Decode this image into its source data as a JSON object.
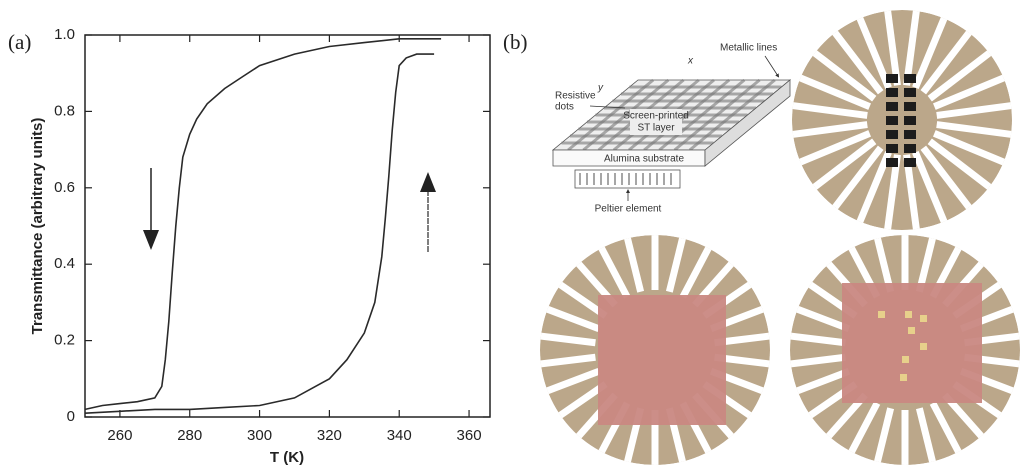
{
  "chart_data": {
    "type": "line",
    "xlabel": "T (K)",
    "ylabel": "Transmittance (arbitrary units)",
    "xlim": [
      250,
      366
    ],
    "ylim": [
      0,
      1
    ],
    "xticks": [
      260,
      280,
      300,
      320,
      340,
      360
    ],
    "yticks": [
      0,
      0.2,
      0.4,
      0.6,
      0.8,
      {
        "value": 1,
        "label": "1.0"
      }
    ],
    "series": [
      {
        "color": "#2a2a2a",
        "x": [
          352,
          345,
          340,
          330,
          320,
          310,
          300,
          295,
          290,
          285,
          282,
          280,
          278,
          277,
          276,
          275,
          274,
          273,
          272,
          270,
          265,
          260,
          255,
          250
        ],
        "values": [
          0.99,
          0.99,
          0.99,
          0.98,
          0.97,
          0.95,
          0.92,
          0.89,
          0.86,
          0.82,
          0.78,
          0.74,
          0.68,
          0.6,
          0.5,
          0.38,
          0.25,
          0.15,
          0.08,
          0.05,
          0.04,
          0.035,
          0.03,
          0.02
        ]
      },
      {
        "color": "#2a2a2a",
        "x": [
          250,
          260,
          270,
          280,
          290,
          300,
          310,
          320,
          325,
          330,
          333,
          335,
          336,
          337,
          338,
          339,
          340,
          342,
          345,
          350
        ],
        "values": [
          0.01,
          0.015,
          0.02,
          0.02,
          0.025,
          0.03,
          0.05,
          0.1,
          0.15,
          0.22,
          0.3,
          0.42,
          0.52,
          0.63,
          0.75,
          0.85,
          0.92,
          0.94,
          0.95,
          0.95
        ]
      }
    ]
  },
  "panel_a": {
    "label": "(a)"
  },
  "panel_b": {
    "label": "(b)",
    "diagram": {
      "metallic_lines": "Metallic lines",
      "x_axis": "x",
      "y_axis": "y",
      "resistive_dots": [
        "Resistive",
        "dots"
      ],
      "st_layer": [
        "Screen-printed",
        "ST layer"
      ],
      "substrate": "Alumina substrate",
      "peltier": "Peltier element"
    }
  }
}
